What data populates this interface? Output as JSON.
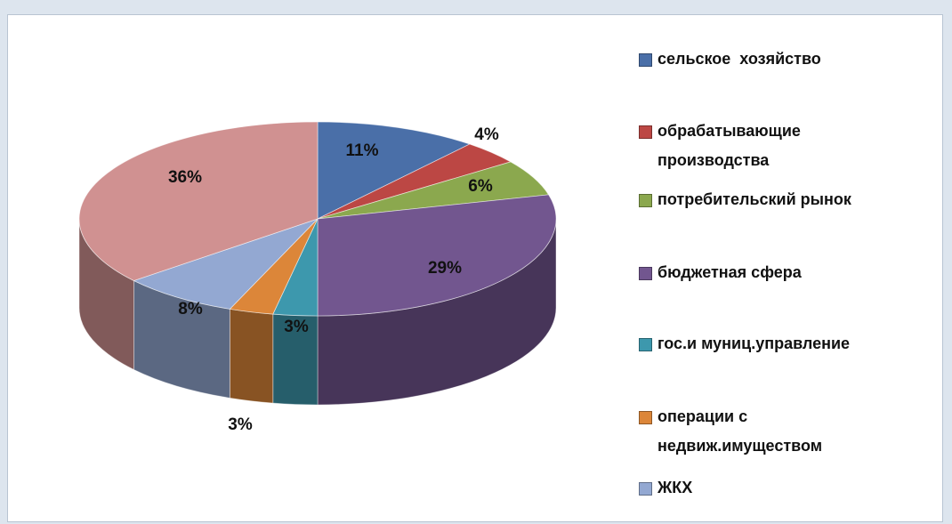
{
  "chart_data": {
    "type": "pie",
    "categories": [
      "сельское  хозяйство",
      "обрабатывающие производства",
      "потребительский рынок",
      "бюджетная сфера",
      "гос.и муниц.управление",
      "операции с недвиж.имуществом",
      "ЖКХ",
      null
    ],
    "values": [
      11,
      4,
      6,
      29,
      3,
      3,
      8,
      36
    ],
    "value_labels": [
      "11%",
      "4%",
      "6%",
      "29%",
      "3%",
      "3%",
      "8%",
      "36%"
    ],
    "colors": [
      "#4a6fa8",
      "#bc4744",
      "#8ba84e",
      "#72568f",
      "#3d98ad",
      "#dc8639",
      "#93a8d2",
      "#d09191"
    ]
  }
}
